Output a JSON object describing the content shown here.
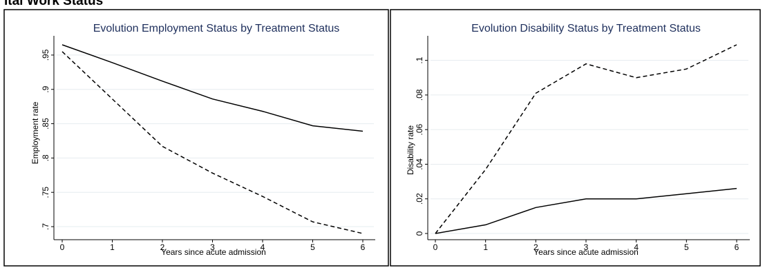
{
  "page_heading": "ital Work Status",
  "chart_data": [
    {
      "type": "line",
      "title": "Evolution Employment Status by Treatment Status",
      "xlabel": "Years since acute admission",
      "ylabel": "Employment rate",
      "x": [
        0,
        1,
        2,
        3,
        4,
        5,
        6
      ],
      "xticks": [
        "0",
        "1",
        "2",
        "3",
        "4",
        "5",
        "6"
      ],
      "yticks": [
        0.7,
        0.75,
        0.8,
        0.85,
        0.9,
        0.95
      ],
      "ytick_labels": [
        ".7",
        ".75",
        ".8",
        ".85",
        ".9",
        ".95"
      ],
      "xlim": [
        0,
        6
      ],
      "ylim": [
        0.685,
        0.97
      ],
      "grid": true,
      "legend": "none",
      "series": [
        {
          "style": "solid",
          "values": [
            0.965,
            0.939,
            0.912,
            0.886,
            0.868,
            0.847,
            0.839
          ]
        },
        {
          "style": "dashed",
          "values": [
            0.955,
            0.886,
            0.817,
            0.778,
            0.744,
            0.707,
            0.69
          ]
        }
      ]
    },
    {
      "type": "line",
      "title": "Evolution Disability Status by Treatment Status",
      "xlabel": "Years since acute admission",
      "ylabel": "Disability rate",
      "x": [
        0,
        1,
        2,
        3,
        4,
        5,
        6
      ],
      "xticks": [
        "0",
        "1",
        "2",
        "3",
        "4",
        "5",
        "6"
      ],
      "yticks": [
        0,
        0.02,
        0.04,
        0.06,
        0.08,
        0.1
      ],
      "ytick_labels": [
        "0",
        ".02",
        ".04",
        ".06",
        ".08",
        ".1"
      ],
      "xlim": [
        0,
        6
      ],
      "ylim": [
        -0.002,
        0.111
      ],
      "grid": true,
      "legend": "none",
      "series": [
        {
          "style": "solid",
          "values": [
            0.0,
            0.005,
            0.015,
            0.02,
            0.02,
            0.023,
            0.026
          ]
        },
        {
          "style": "dashed",
          "values": [
            0.0,
            0.037,
            0.081,
            0.098,
            0.09,
            0.095,
            0.109
          ]
        }
      ]
    }
  ]
}
